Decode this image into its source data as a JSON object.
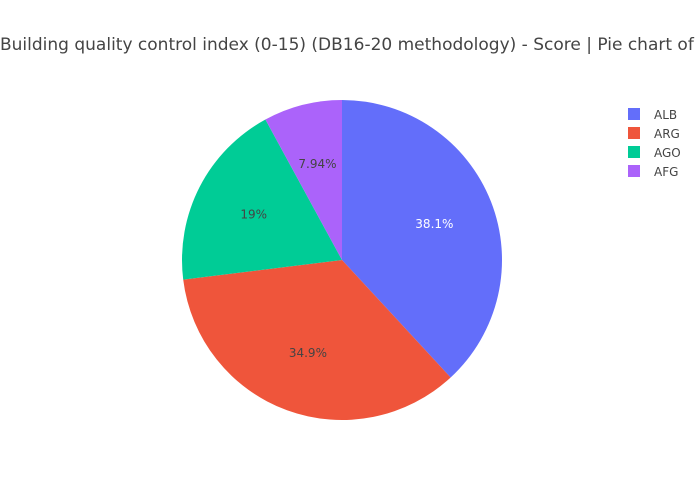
{
  "chart_data": {
    "type": "pie",
    "title": "Building quality control index (0-15) (DB16-20 methodology) - Score | Pie chart of",
    "categories": [
      "ALB",
      "ARG",
      "AGO",
      "AFG"
    ],
    "values": [
      38.1,
      34.9,
      19,
      7.94
    ],
    "labels": [
      "38.1%",
      "34.9%",
      "19%",
      "7.94%"
    ],
    "colors": [
      "#636efa",
      "#ef553b",
      "#00cc96",
      "#ab63fa"
    ],
    "label_colors": [
      "#ffffff",
      "#444444",
      "#444444",
      "#444444"
    ],
    "direction": "clockwise",
    "legend_position": "top-right"
  }
}
